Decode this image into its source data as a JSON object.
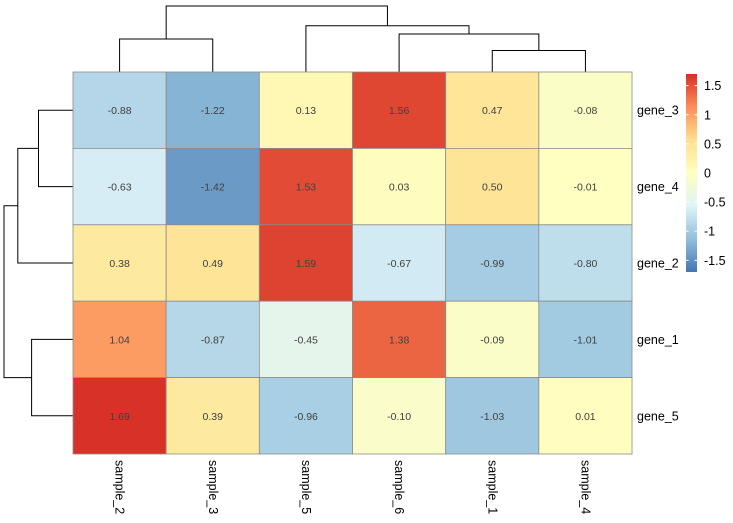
{
  "chart_data": {
    "type": "heatmap",
    "title": "",
    "rows": [
      "gene_3",
      "gene_4",
      "gene_2",
      "gene_1",
      "gene_5"
    ],
    "columns": [
      "sample_2",
      "sample_3",
      "sample_5",
      "sample_6",
      "sample_1",
      "sample_4"
    ],
    "values": [
      [
        -0.88,
        -1.22,
        0.13,
        1.56,
        0.47,
        -0.08
      ],
      [
        -0.63,
        -1.42,
        1.53,
        0.03,
        0.5,
        -0.01
      ],
      [
        0.38,
        0.49,
        1.59,
        -0.67,
        -0.99,
        -0.8
      ],
      [
        1.04,
        -0.87,
        -0.45,
        1.38,
        -0.09,
        -1.01
      ],
      [
        1.69,
        0.39,
        -0.96,
        -0.1,
        -1.03,
        0.01
      ]
    ],
    "cell_labels": [
      [
        "-0.88",
        "-1.22",
        "0.13",
        "1.56",
        "0.47",
        "-0.08"
      ],
      [
        "-0.63",
        "-1.42",
        "1.53",
        "0.03",
        "0.50",
        "-0.01"
      ],
      [
        "0.38",
        "0.49",
        "1.59",
        "-0.67",
        "-0.99",
        "-0.80"
      ],
      [
        "1.04",
        "-0.87",
        "-0.45",
        "1.38",
        "-0.09",
        "-1.01"
      ],
      [
        "1.69",
        "0.39",
        "-0.96",
        "-0.10",
        "-1.03",
        "0.01"
      ]
    ],
    "color_scale": {
      "min": -1.7,
      "max": 1.7,
      "colors": [
        "#4575B4",
        "#91BFDB",
        "#E0F3F8",
        "#FFFFBF",
        "#FEE090",
        "#FC8D59",
        "#D73027"
      ]
    },
    "legend": {
      "ticks": [
        1.5,
        1,
        0.5,
        0,
        -0.5,
        -1,
        -1.5
      ],
      "tick_labels": [
        "1.5",
        "1",
        "0.5",
        "0",
        "-0.5",
        "-1",
        "-1.5"
      ],
      "placement": "right"
    },
    "column_dendrogram": {
      "description": "sample_2 + sample_3 merge; sample_1 + sample_4 merge, then with sample_6; then with sample_5; root joins both groups",
      "merges": [
        {
          "id": "c1",
          "left": "sample_2",
          "right": "sample_3",
          "height": 1.0
        },
        {
          "id": "c2",
          "left": "sample_1",
          "right": "sample_4",
          "height": 0.65
        },
        {
          "id": "c3",
          "left": "sample_6",
          "right": "c2",
          "height": 1.15
        },
        {
          "id": "c4",
          "left": "sample_5",
          "right": "c3",
          "height": 1.4
        },
        {
          "id": "c5",
          "left": "c1",
          "right": "c4",
          "height": 2.0
        }
      ]
    },
    "row_dendrogram": {
      "merges": [
        {
          "id": "r1",
          "left": "gene_3",
          "right": "gene_4",
          "height": 1.0
        },
        {
          "id": "r2",
          "left": "r1",
          "right": "gene_2",
          "height": 1.6
        },
        {
          "id": "r3",
          "left": "gene_1",
          "right": "gene_5",
          "height": 1.2
        },
        {
          "id": "r4",
          "left": "r2",
          "right": "r3",
          "height": 2.0
        }
      ]
    }
  }
}
